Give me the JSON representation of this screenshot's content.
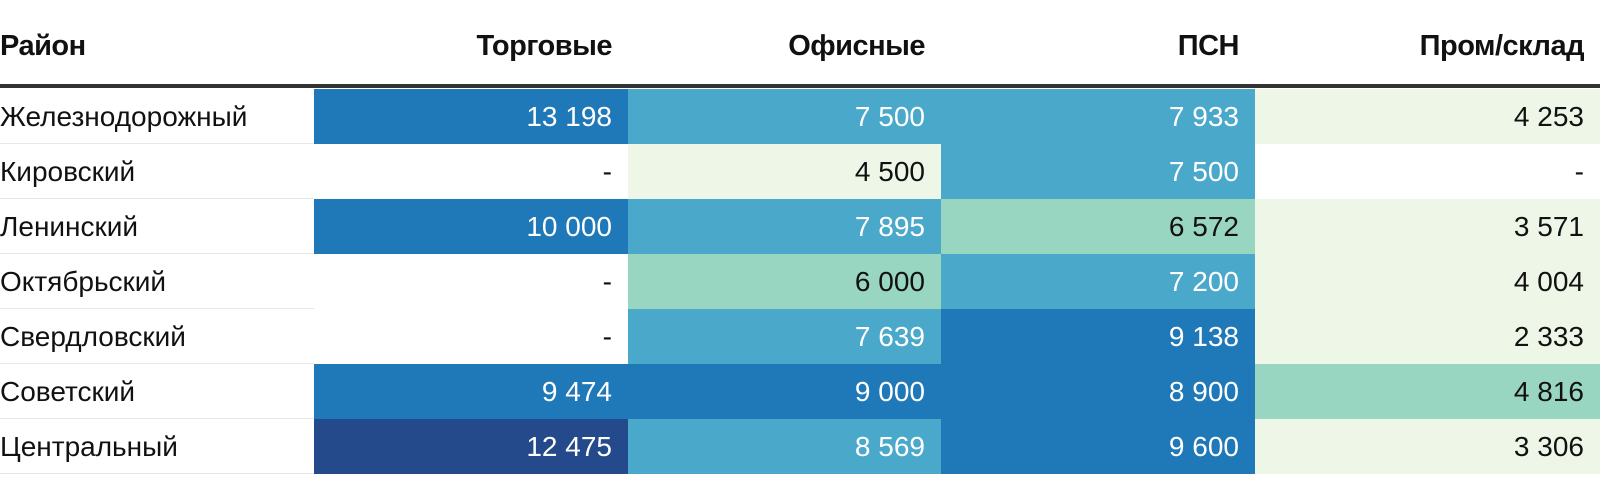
{
  "chart_data": {
    "type": "table",
    "columns": [
      "Район",
      "Торговые",
      "Офисные",
      "ПСН",
      "Пром/склад"
    ],
    "rows": [
      {
        "district": "Железнодорожный",
        "values": [
          "13 198",
          "7 500",
          "7 933",
          "4 253"
        ],
        "levels": [
          4,
          3,
          3,
          1
        ]
      },
      {
        "district": "Кировский",
        "values": [
          "-",
          "4 500",
          "7 500",
          "-"
        ],
        "levels": [
          0,
          1,
          3,
          0
        ]
      },
      {
        "district": "Ленинский",
        "values": [
          "10 000",
          "7 895",
          "6 572",
          "3 571"
        ],
        "levels": [
          4,
          3,
          2,
          1
        ]
      },
      {
        "district": "Октябрьский",
        "values": [
          "-",
          "6 000",
          "7 200",
          "4 004"
        ],
        "levels": [
          0,
          2,
          3,
          1
        ]
      },
      {
        "district": "Свердловский",
        "values": [
          "-",
          "7 639",
          "9 138",
          "2 333"
        ],
        "levels": [
          0,
          3,
          4,
          1
        ]
      },
      {
        "district": "Советский",
        "values": [
          "9 474",
          "9 000",
          "8 900",
          "4 816"
        ],
        "levels": [
          4,
          4,
          4,
          2
        ]
      },
      {
        "district": "Центральный",
        "values": [
          "12 475",
          "8 569",
          "9 600",
          "3 306"
        ],
        "levels": [
          5,
          3,
          4,
          1
        ]
      }
    ],
    "palette": {
      "0": "#ffffff",
      "1": "#eef7e7",
      "2": "#99d6c2",
      "3": "#4aa8cb",
      "4": "#1f78b7",
      "5": "#244a8c"
    },
    "text_colors": {
      "light": "#ffffff",
      "dark": "#111111"
    }
  }
}
